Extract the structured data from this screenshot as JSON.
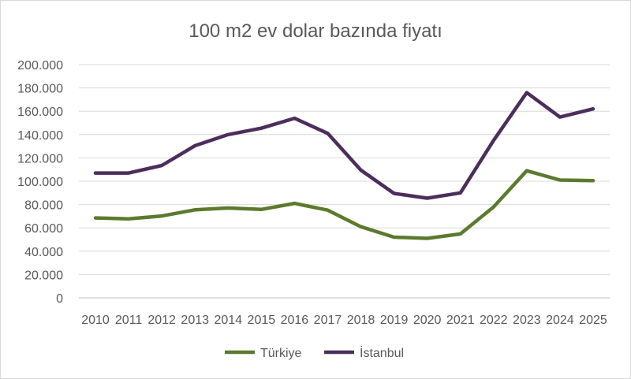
{
  "chart_data": {
    "type": "line",
    "title": "100 m2 ev dolar bazında fiyatı",
    "x": [
      "2010",
      "2011",
      "2012",
      "2013",
      "2014",
      "2015",
      "2016",
      "2017",
      "2018",
      "2019",
      "2020",
      "2021",
      "2022",
      "2023",
      "2024",
      "2025"
    ],
    "y_ticks": [
      "0",
      "20.000",
      "40.000",
      "60.000",
      "80.000",
      "100.000",
      "120.000",
      "140.000",
      "160.000",
      "180.000",
      "200.000"
    ],
    "ylim": [
      0,
      200000
    ],
    "grid": true,
    "legend_position": "bottom",
    "series": [
      {
        "name": "Türkiye",
        "color": "#5b7a2e",
        "values": [
          68500,
          67800,
          70200,
          75500,
          77000,
          75800,
          81000,
          75200,
          61000,
          52000,
          51000,
          54800,
          78000,
          109000,
          101000,
          100500
        ]
      },
      {
        "name": "İstanbul",
        "color": "#4b2e5c",
        "values": [
          107000,
          107000,
          113500,
          130500,
          140000,
          145500,
          154000,
          141000,
          109500,
          89500,
          85500,
          90000,
          135000,
          176000,
          155000,
          162000
        ]
      }
    ]
  }
}
